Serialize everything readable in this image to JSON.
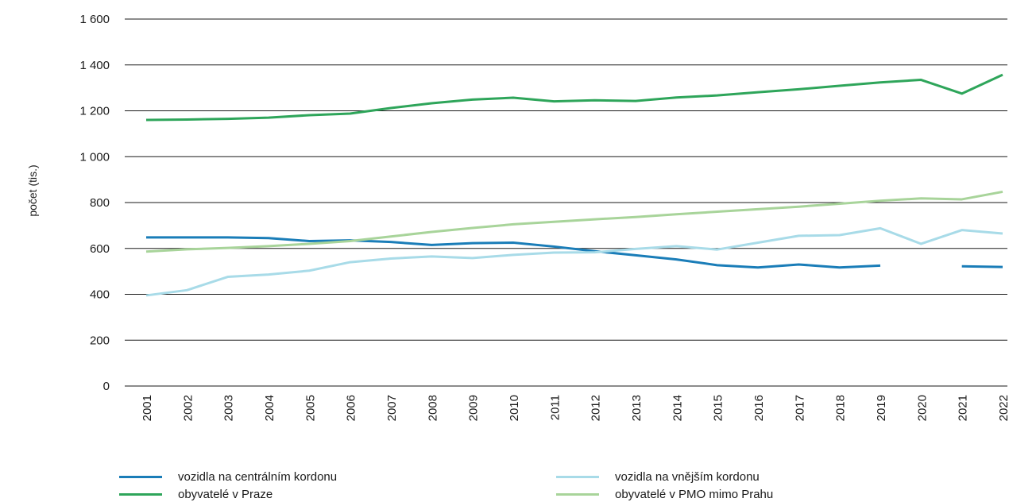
{
  "chart_data": {
    "type": "line",
    "ylabel": "počet (tis.)",
    "ylim": [
      0,
      1600
    ],
    "yticks": [
      "0",
      "200",
      "400",
      "600",
      "800",
      "1 000",
      "1 200",
      "1 400",
      "1 600"
    ],
    "x": [
      "2001",
      "2002",
      "2003",
      "2004",
      "2005",
      "2006",
      "2007",
      "2008",
      "2009",
      "2010",
      "2011",
      "2012",
      "2013",
      "2014",
      "2015",
      "2016",
      "2017",
      "2018",
      "2019",
      "2020",
      "2021",
      "2022"
    ],
    "grid": true,
    "legend_position": "bottom",
    "series": [
      {
        "name": "vozidla na centrálním kordonu",
        "color": "#1a7db8",
        "values": [
          648,
          648,
          648,
          645,
          632,
          635,
          628,
          615,
          623,
          625,
          608,
          588,
          570,
          552,
          527,
          517,
          530,
          517,
          525,
          null,
          522,
          519
        ]
      },
      {
        "name": "vozidla na vnějším kordonu",
        "color": "#a8dbe8",
        "values": [
          395,
          418,
          476,
          486,
          503,
          540,
          556,
          565,
          558,
          572,
          582,
          583,
          598,
          610,
          595,
          625,
          655,
          658,
          688,
          620,
          680,
          665
        ]
      },
      {
        "name": "obyvatelé v Praze",
        "color": "#2ea55a",
        "values": [
          1160,
          1162,
          1165,
          1170,
          1181,
          1188,
          1212,
          1233,
          1249,
          1257,
          1241,
          1246,
          1243,
          1258,
          1267,
          1281,
          1294,
          1309,
          1324,
          1335,
          1275,
          1357
        ]
      },
      {
        "name": "obyvatelé v PMO mimo Prahu",
        "color": "#a8d49a",
        "values": [
          586,
          596,
          602,
          610,
          620,
          632,
          652,
          672,
          689,
          705,
          716,
          727,
          737,
          749,
          760,
          771,
          782,
          795,
          808,
          818,
          814,
          847
        ]
      }
    ]
  }
}
